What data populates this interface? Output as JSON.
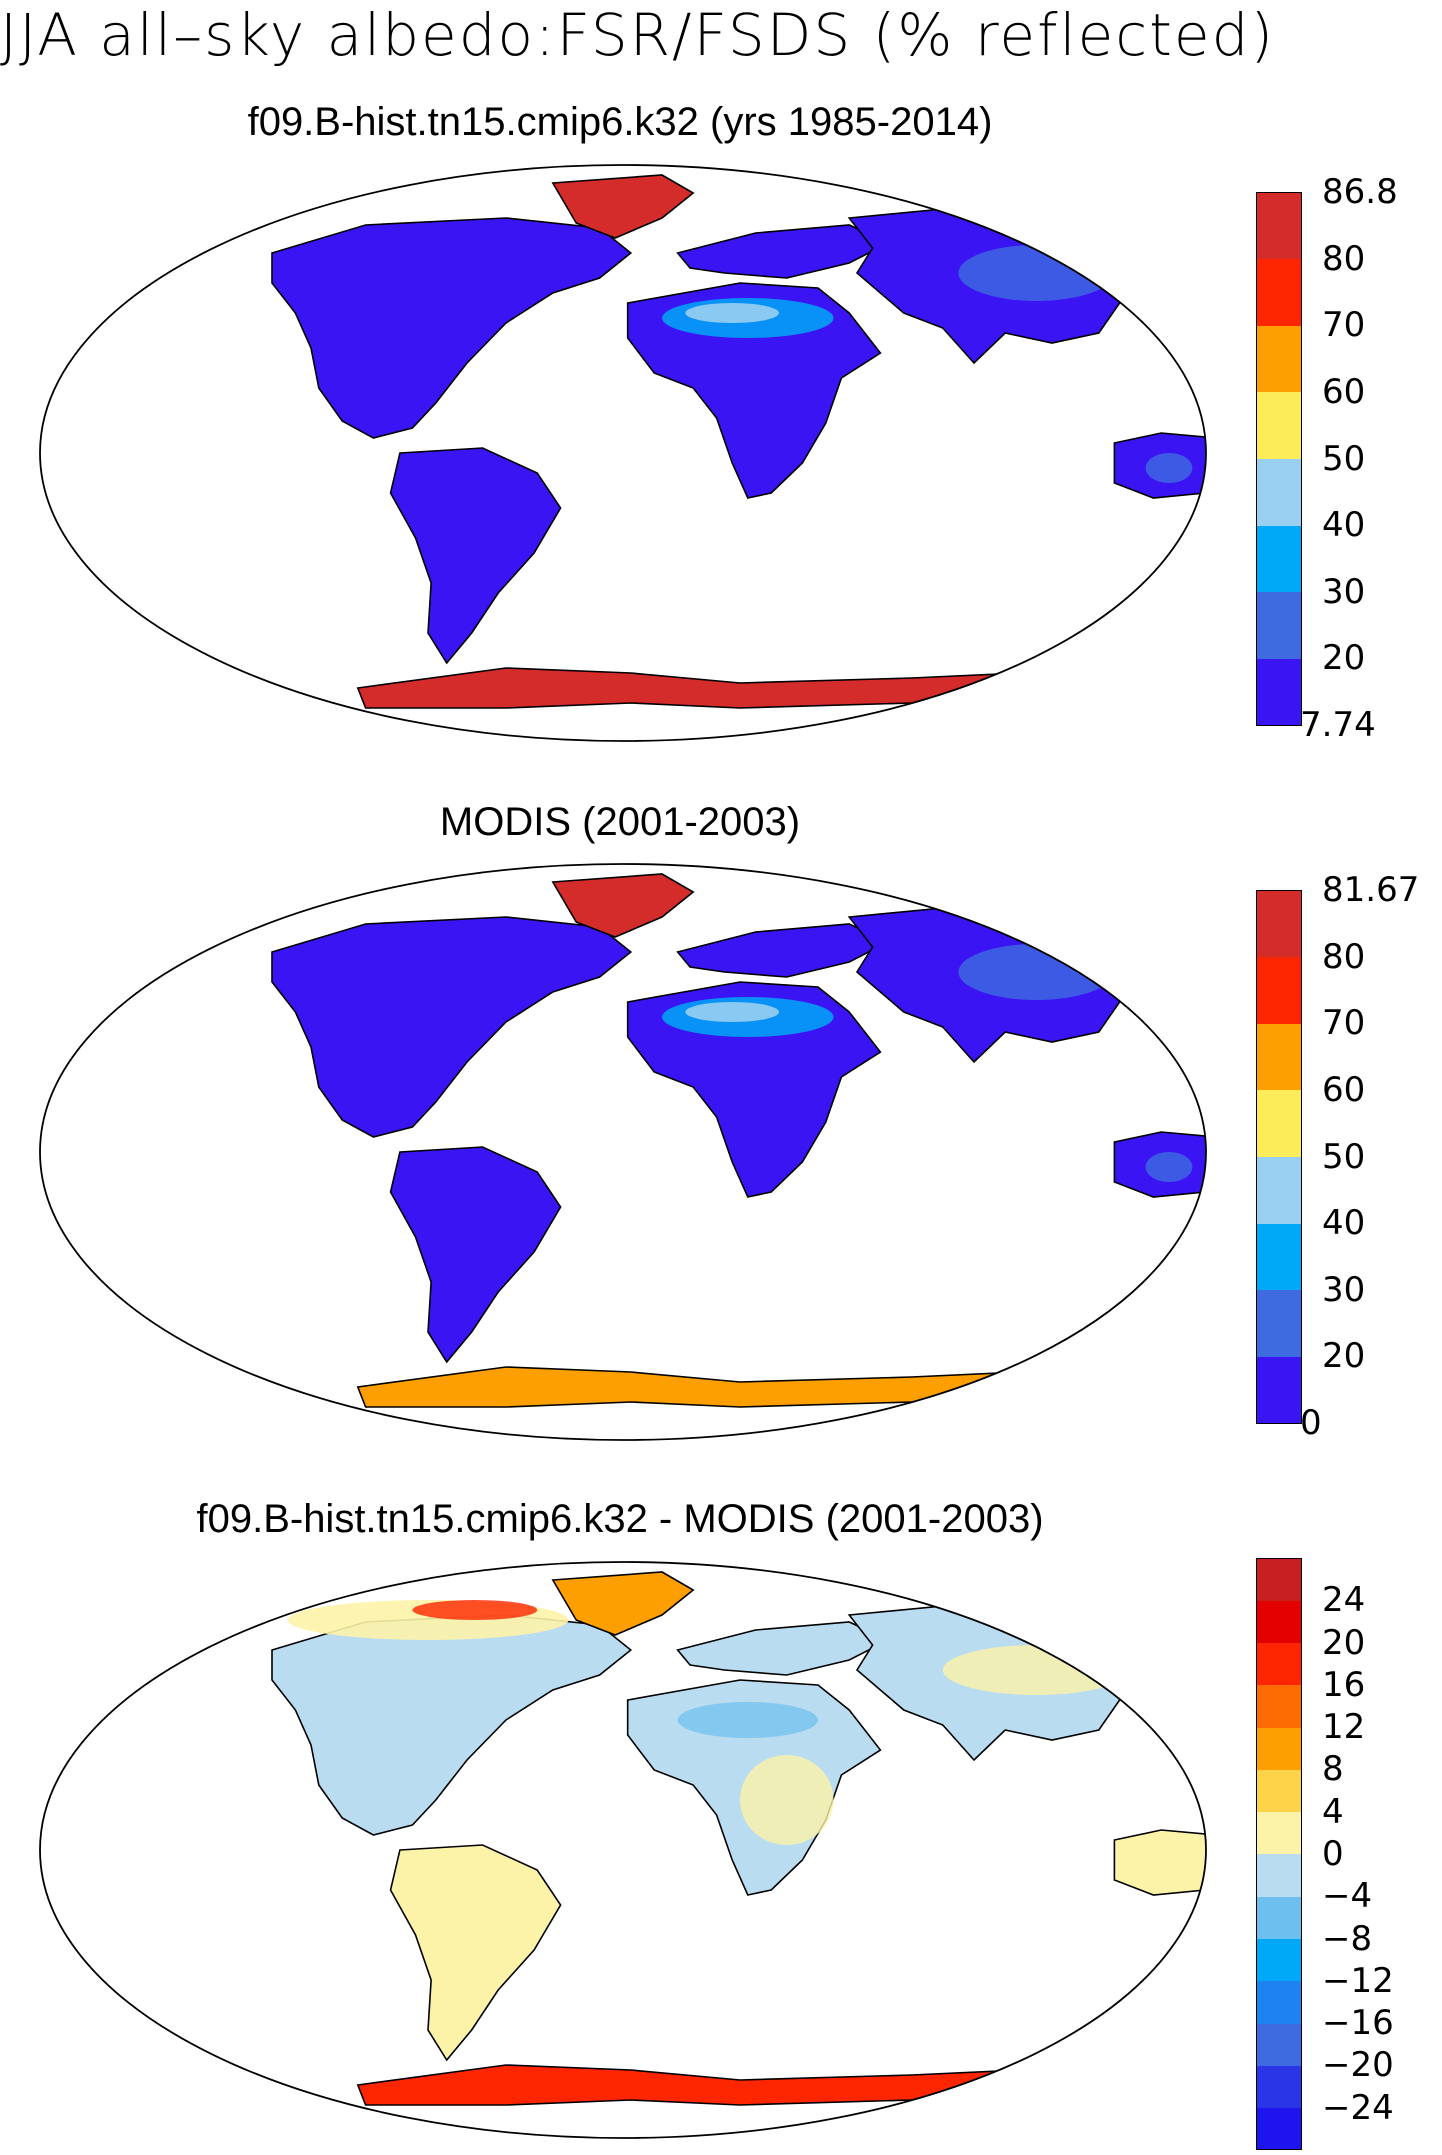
{
  "title": "JJA all–sky albedo:FSR/FSDS (% reflected)",
  "colors": {
    "land_base": "#3b14f4",
    "levels_abs": [
      "#3b14f4",
      "#3f6be0",
      "#00a8f8",
      "#99cff0",
      "#fdec5a",
      "#fd9f00",
      "#fe2600",
      "#d42b2b"
    ],
    "levels_diff": [
      "#1e14ee",
      "#2b35e8",
      "#3f6be0",
      "#1e83f0",
      "#00a8f8",
      "#6cbfee",
      "#b9dcf0",
      "#fdf3a8",
      "#fdd449",
      "#fd9f00",
      "#fd6c00",
      "#fe2600",
      "#e50000",
      "#c82020"
    ]
  },
  "panels": [
    {
      "title": "f09.B-hist.tn15.cmip6.k32 (yrs 1985-2014)",
      "kind": "model",
      "colorbar": {
        "labels": [
          "86.8",
          "80",
          "70",
          "60",
          "50",
          "40",
          "30",
          "20",
          "7.74"
        ]
      }
    },
    {
      "title": "MODIS (2001-2003)",
      "kind": "obs",
      "colorbar": {
        "labels": [
          "81.67",
          "80",
          "70",
          "60",
          "50",
          "40",
          "30",
          "20",
          "0"
        ]
      }
    },
    {
      "title": "f09.B-hist.tn15.cmip6.k32 - MODIS (2001-2003)",
      "kind": "diff",
      "colorbar": {
        "labels": [
          "24",
          "20",
          "16",
          "12",
          "8",
          "4",
          "0",
          "−4",
          "−8",
          "−12",
          "−16",
          "−20",
          "−24"
        ]
      }
    }
  ]
}
